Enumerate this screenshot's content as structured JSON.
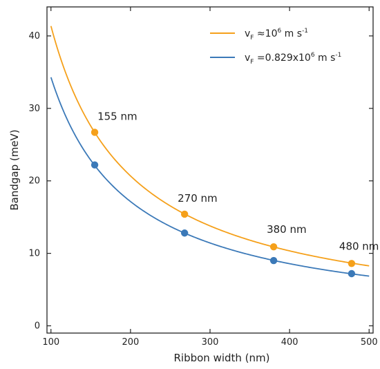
{
  "chart_data": {
    "type": "line",
    "xlabel": "Ribbon width (nm)",
    "ylabel": "Bandgap (meV)",
    "xlim": [
      95,
      505
    ],
    "ylim": [
      -1,
      44
    ],
    "x_ticks": [
      100,
      200,
      300,
      400,
      500
    ],
    "y_ticks": [
      0,
      10,
      20,
      30,
      40
    ],
    "grid": false,
    "legend_position": "top-right",
    "colors": {
      "orange": "#F5A01A",
      "blue": "#3B79B8"
    },
    "series": [
      {
        "legend_parts": {
          "main": "v",
          "sub": "F",
          "rel": " ≈10",
          "sup": "6",
          "unit": " m s",
          "unit_sup": "-1"
        },
        "color": "#F5A01A",
        "curve_coefficient": 4136,
        "points": [
          {
            "x": 155,
            "y": 26.7
          },
          {
            "x": 268,
            "y": 15.4
          },
          {
            "x": 380,
            "y": 10.9
          },
          {
            "x": 478,
            "y": 8.6
          }
        ]
      },
      {
        "legend_parts": {
          "main": "v",
          "sub": "F",
          "rel": " =0.829x10",
          "sup": "6",
          "unit": " m s",
          "unit_sup": "-1"
        },
        "color": "#3B79B8",
        "curve_coefficient": 3429,
        "points": [
          {
            "x": 155,
            "y": 22.2
          },
          {
            "x": 268,
            "y": 12.8
          },
          {
            "x": 380,
            "y": 9.0
          },
          {
            "x": 478,
            "y": 7.2
          }
        ]
      }
    ],
    "annotations": [
      {
        "text": "155 nm",
        "x": 155,
        "y": 26.7
      },
      {
        "text": "270 nm",
        "x": 268,
        "y": 15.4
      },
      {
        "text": "380 nm",
        "x": 380,
        "y": 10.9
      },
      {
        "text": "480 nm",
        "x": 478,
        "y": 8.6
      }
    ]
  }
}
